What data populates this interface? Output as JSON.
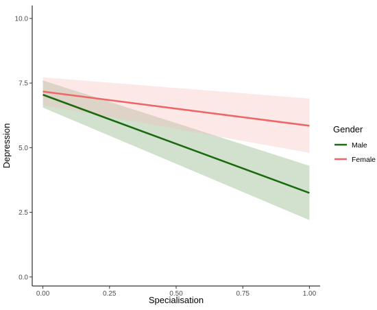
{
  "chart_data": {
    "type": "line",
    "xlabel": "Specialisation",
    "ylabel": "Depression",
    "xlim": [
      -0.04,
      1.04
    ],
    "ylim": [
      -0.35,
      10.5
    ],
    "x_ticks": [
      0.0,
      0.25,
      0.5,
      0.75,
      1.0
    ],
    "x_tick_labels": [
      "0.00",
      "0.25",
      "0.50",
      "0.75",
      "1.00"
    ],
    "y_ticks": [
      0.0,
      2.5,
      5.0,
      7.5,
      10.0
    ],
    "y_tick_labels": [
      "0.0",
      "2.5",
      "5.0",
      "7.5",
      "10.0"
    ],
    "grid": false,
    "legend": {
      "title": "Gender",
      "placement": "right"
    },
    "x": [
      0.0,
      1.0
    ],
    "series": [
      {
        "name": "Male",
        "color": "#1a6b0f",
        "ribbon_color": "#6b9a5e",
        "values": [
          7.05,
          3.25
        ],
        "lower": [
          6.55,
          2.2
        ],
        "upper": [
          7.6,
          4.3
        ]
      },
      {
        "name": "Female",
        "color": "#ee6666",
        "ribbon_color": "#f9b3b3",
        "values": [
          7.17,
          5.85
        ],
        "lower": [
          6.65,
          4.8
        ],
        "upper": [
          7.72,
          6.9
        ]
      }
    ]
  }
}
